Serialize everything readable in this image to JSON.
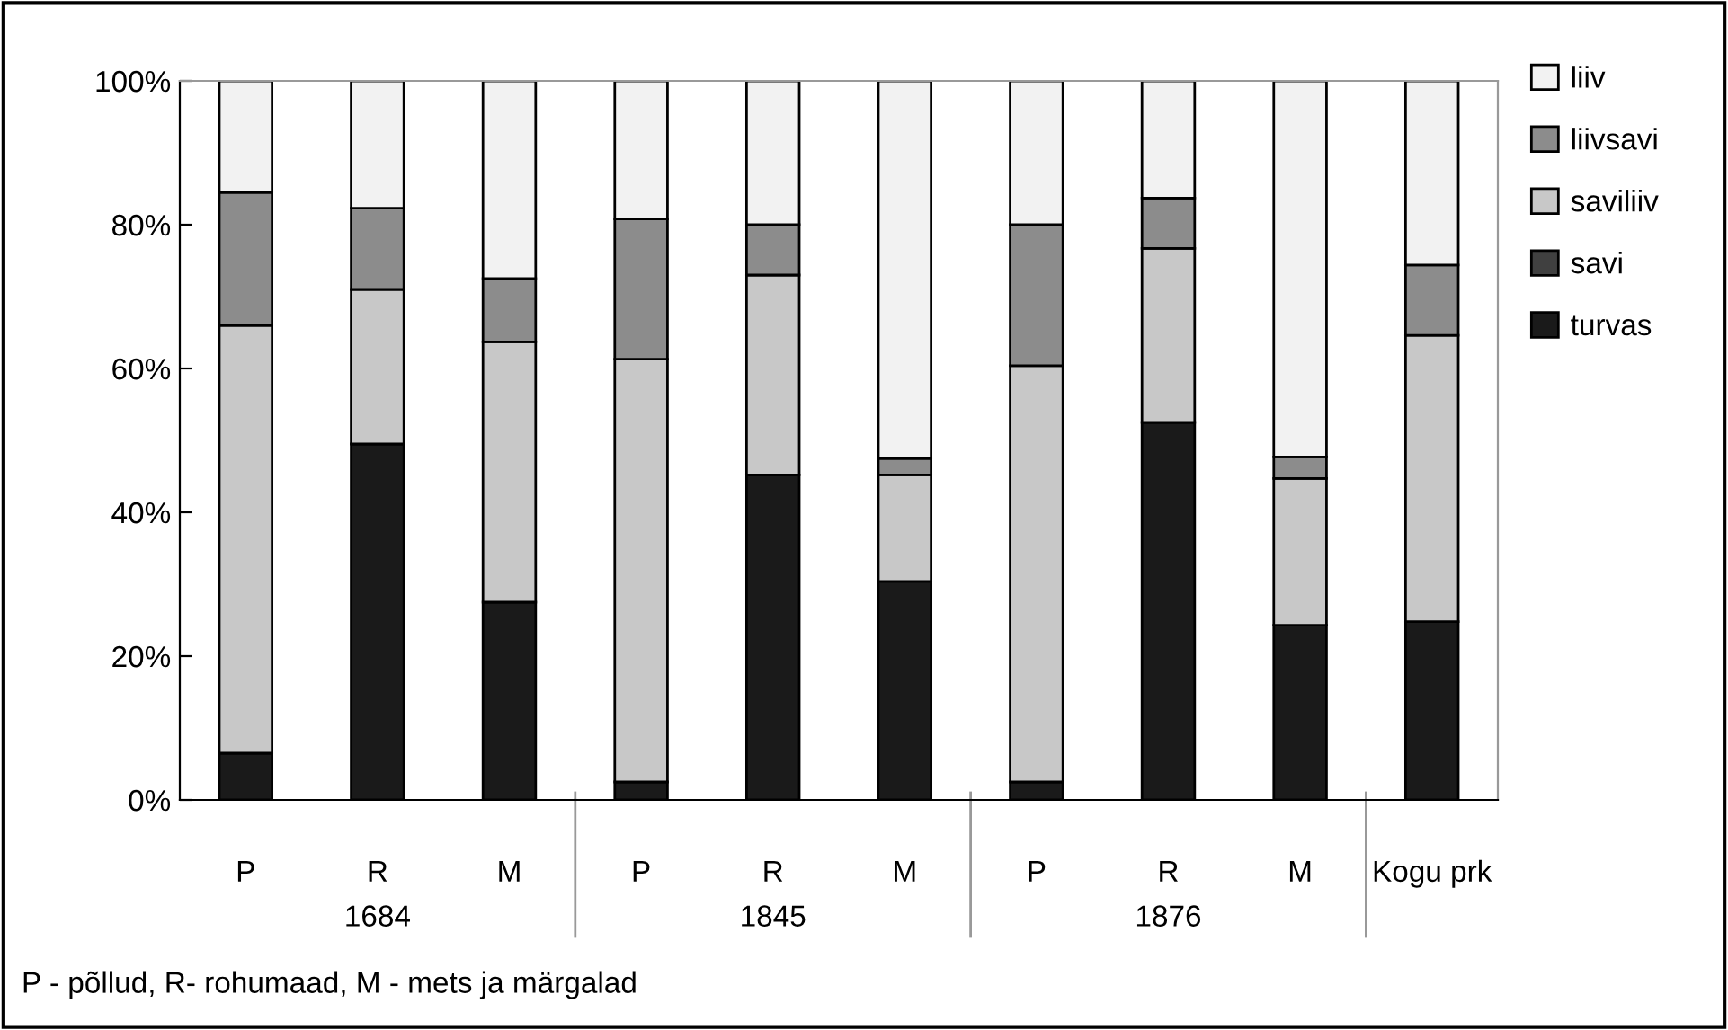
{
  "chart_data": {
    "type": "bar",
    "stacked": true,
    "categories": [
      "P",
      "R",
      "M",
      "P",
      "R",
      "M",
      "P",
      "R",
      "M",
      "Kogu prk"
    ],
    "series": [
      {
        "name": "turvas",
        "color": "#1a1a1a",
        "values": [
          6.5,
          49.5,
          27.5,
          2.5,
          45.2,
          30.4,
          2.5,
          52.5,
          24.3,
          24.8
        ]
      },
      {
        "name": "savi",
        "color": "#404040",
        "values": [
          0,
          0,
          0,
          0,
          0,
          0,
          0,
          0,
          0,
          0
        ]
      },
      {
        "name": "saviliiv",
        "color": "#c8c8c8",
        "values": [
          59.5,
          21.5,
          36.2,
          58.8,
          27.8,
          14.8,
          57.9,
          24.2,
          20.4,
          39.8
        ]
      },
      {
        "name": "liivsavi",
        "color": "#8c8c8c",
        "values": [
          18.5,
          11.3,
          8.8,
          19.5,
          7.0,
          2.3,
          19.6,
          7.0,
          3.0,
          9.8
        ]
      },
      {
        "name": "liiv",
        "color": "#f2f2f2",
        "values": [
          15.5,
          17.7,
          27.5,
          19.2,
          20.0,
          52.5,
          20.0,
          16.3,
          52.3,
          25.6
        ]
      }
    ],
    "ylim": [
      0,
      100
    ],
    "yticks": [
      {
        "value": 0,
        "label": "0%"
      },
      {
        "value": 20,
        "label": "20%"
      },
      {
        "value": 40,
        "label": "40%"
      },
      {
        "value": 60,
        "label": "60%"
      },
      {
        "value": 80,
        "label": "80%"
      },
      {
        "value": 100,
        "label": "100%"
      }
    ],
    "grid": false,
    "legend": "right",
    "annotations": [
      "1684",
      "1845",
      "1876",
      "P - põllud, R- rohumaad, M - mets ja märgalad"
    ]
  }
}
